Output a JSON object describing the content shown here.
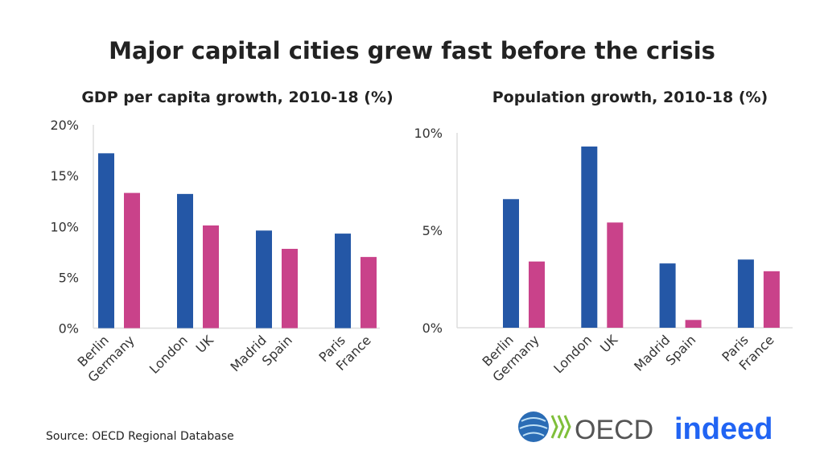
{
  "title": "Major capital cities grew fast before the crisis",
  "source": "Source: OECD Regional Database",
  "logos": {
    "oecd": "OECD",
    "indeed": "indeed"
  },
  "colors": {
    "city": "#2457a6",
    "country": "#c9428a"
  },
  "chart_data": [
    {
      "type": "bar",
      "title": "GDP per capita growth, 2010-18 (%)",
      "categories": [
        "Berlin",
        "Germany",
        "London",
        "UK",
        "Madrid",
        "Spain",
        "Paris",
        "France"
      ],
      "values": [
        17.2,
        13.3,
        13.2,
        10.1,
        9.6,
        7.8,
        9.3,
        7.0
      ],
      "ylim": [
        0,
        20
      ],
      "yticks": [
        "0%",
        "5%",
        "10%",
        "15%",
        "20%"
      ],
      "ytick_values": [
        0,
        5,
        10,
        15,
        20
      ],
      "grid": false
    },
    {
      "type": "bar",
      "title": "Population growth, 2010-18 (%)",
      "categories": [
        "Berlin",
        "Germany",
        "London",
        "UK",
        "Madrid",
        "Spain",
        "Paris",
        "France"
      ],
      "values": [
        6.6,
        3.4,
        9.3,
        5.4,
        3.3,
        0.4,
        3.5,
        2.9
      ],
      "ylim": [
        0,
        10
      ],
      "yticks": [
        "0%",
        "5%",
        "10%"
      ],
      "ytick_values": [
        0,
        5,
        10
      ],
      "grid": false
    }
  ]
}
